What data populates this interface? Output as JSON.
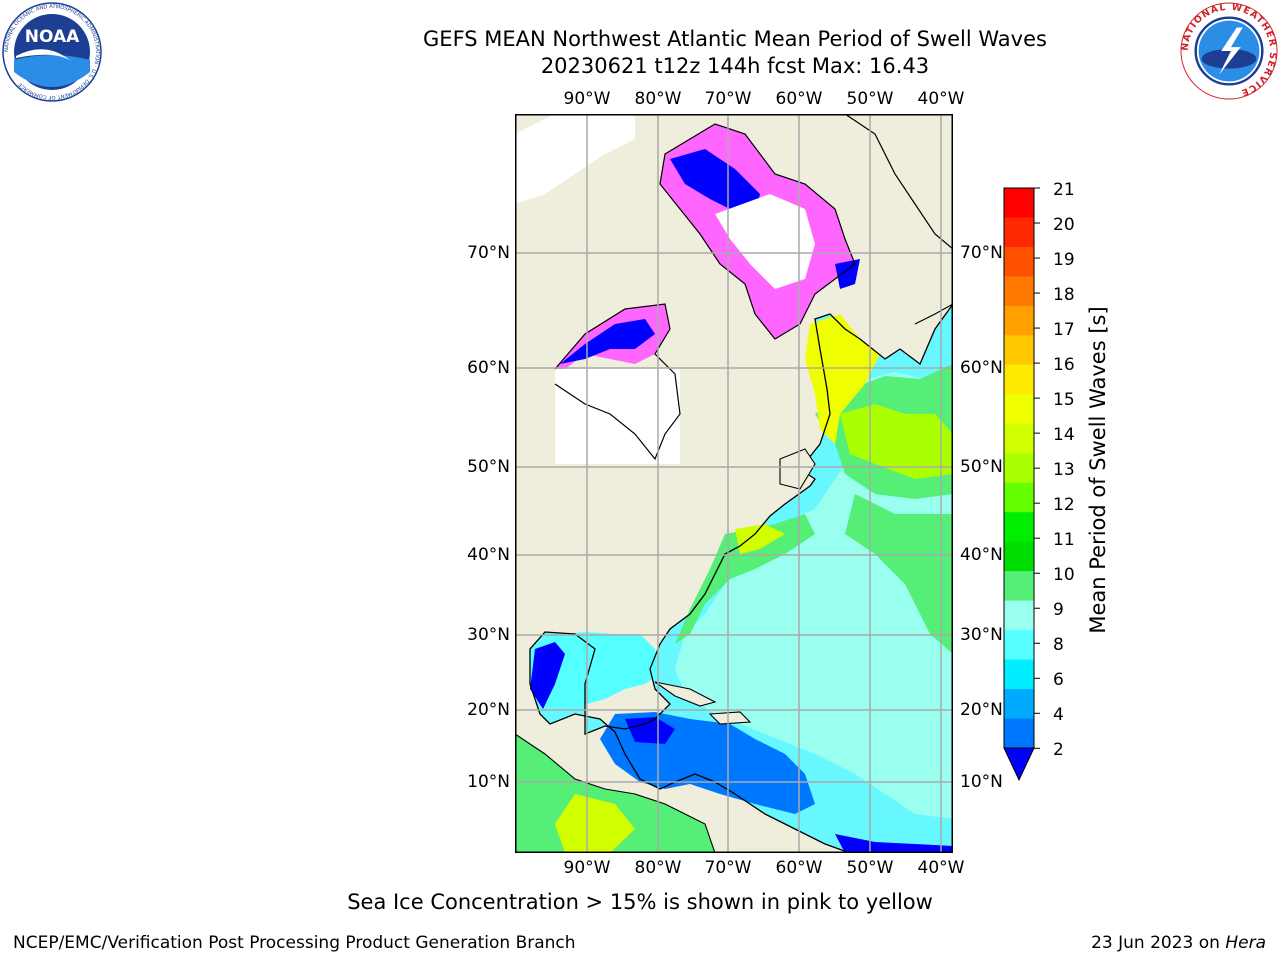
{
  "header": {
    "title_line1": "GEFS MEAN Northwest Atlantic Mean Period of Swell Waves",
    "title_line2": "20230621 t12z 144h fcst   Max: 16.43"
  },
  "map": {
    "lon_labels": [
      "90°W",
      "80°W",
      "70°W",
      "60°W",
      "50°W",
      "40°W"
    ],
    "lat_labels": [
      "70°N",
      "60°N",
      "50°N",
      "40°N",
      "30°N",
      "20°N",
      "10°N"
    ],
    "land_color": "#efeddc",
    "ice_colors": [
      "#ff66ff",
      "#ffaaff",
      "#ffffff"
    ],
    "grid_color": "#aaaaaa"
  },
  "colorbar": {
    "title": "Mean Period of Swell Waves [s]",
    "ticks": [
      "21",
      "20",
      "19",
      "18",
      "17",
      "16",
      "15",
      "14",
      "13",
      "12",
      "11",
      "10",
      "9",
      "8",
      "6",
      "4",
      "2"
    ],
    "colors": [
      "#ff0000",
      "#ff2800",
      "#ff5000",
      "#ff7800",
      "#ffa000",
      "#ffc800",
      "#ffeb00",
      "#f0ff00",
      "#d2ff00",
      "#aaff00",
      "#64ff00",
      "#00ee00",
      "#00dd00",
      "#55ee77",
      "#99ffee",
      "#55ffff",
      "#00eeff",
      "#00aaff",
      "#0077ff",
      "#0000ff"
    ]
  },
  "note": "Sea Ice Concentration > 15% is shown in pink to yellow",
  "footer": {
    "left": "NCEP/EMC/Verification Post Processing Product Generation Branch",
    "right_date": "23 Jun 2023 on ",
    "right_host": "Hera"
  },
  "logos": {
    "noaa_text": "NOAA",
    "noaa_ring": "NATIONAL OCEANIC AND ATMOSPHERIC ADMINISTRATION · U.S. DEPARTMENT OF COMMERCE",
    "nws_ring": "NATIONAL WEATHER SERVICE"
  }
}
